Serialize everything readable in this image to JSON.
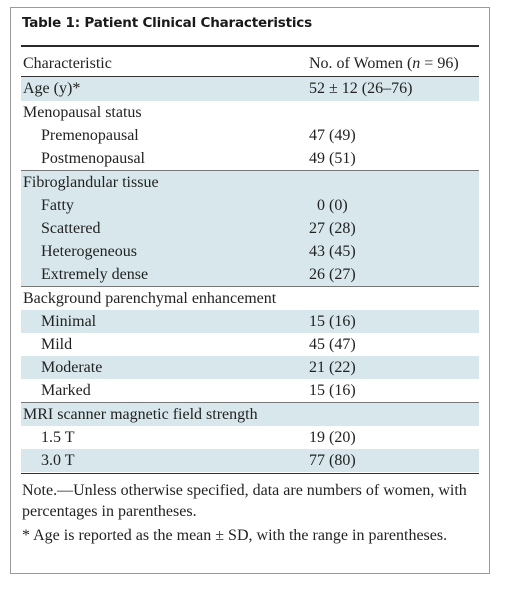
{
  "title": "Table 1: Patient Clinical Characteristics",
  "columns": {
    "characteristic": "Characteristic",
    "count_prefix": "No. of Women (",
    "count_n": "n",
    "count_suffix": " = 96)"
  },
  "rows": [
    {
      "label": "Age (y)*",
      "value": "52 ± 12 (26–76)"
    },
    {
      "label": "Menopausal status",
      "value": ""
    },
    {
      "label": "Premenopausal",
      "value": "47 (49)"
    },
    {
      "label": "Postmenopausal",
      "value": "49 (51)"
    },
    {
      "label": "Fibroglandular tissue",
      "value": ""
    },
    {
      "label": "Fatty",
      "value": "0 (0)"
    },
    {
      "label": "Scattered",
      "value": "27 (28)"
    },
    {
      "label": "Heterogeneous",
      "value": "43 (45)"
    },
    {
      "label": "Extremely dense",
      "value": "26 (27)"
    },
    {
      "label": "Background parenchymal enhancement",
      "value": ""
    },
    {
      "label": "Minimal",
      "value": "15 (16)"
    },
    {
      "label": "Mild",
      "value": "45 (47)"
    },
    {
      "label": "Moderate",
      "value": "21 (22)"
    },
    {
      "label": "Marked",
      "value": "15 (16)"
    },
    {
      "label": "MRI scanner magnetic field strength",
      "value": ""
    },
    {
      "label": "1.5 T",
      "value": "19 (20)"
    },
    {
      "label": "3.0 T",
      "value": "77 (80)"
    }
  ],
  "notes": {
    "note": "Note.—Unless otherwise specified, data are numbers of women, with percentages in parentheses.",
    "footnote": "* Age is reported as the mean ± SD, with the range in parentheses."
  },
  "colors": {
    "shade": "#d7e7ec",
    "text": "#222222"
  }
}
